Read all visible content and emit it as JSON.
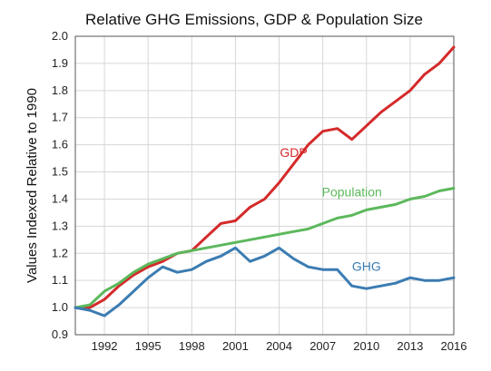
{
  "chart_data": {
    "type": "line",
    "title": "Relative GHG Emissions, GDP & Population Size",
    "xlabel": "",
    "ylabel": "Values Indexed Relative to 1990",
    "xlim": [
      1990,
      2016
    ],
    "ylim": [
      0.9,
      2.0
    ],
    "x_ticks": [
      1992,
      1995,
      1998,
      2001,
      2004,
      2007,
      2010,
      2013,
      2016
    ],
    "y_ticks": [
      0.9,
      1.0,
      1.1,
      1.2,
      1.3,
      1.4,
      1.5,
      1.6,
      1.7,
      1.8,
      1.9,
      2.0
    ],
    "grid": true,
    "legend": "none (series labeled directly on plot)",
    "x": [
      1990,
      1991,
      1992,
      1993,
      1994,
      1995,
      1996,
      1997,
      1998,
      1999,
      2000,
      2001,
      2002,
      2003,
      2004,
      2005,
      2006,
      2007,
      2008,
      2009,
      2010,
      2011,
      2012,
      2013,
      2014,
      2015,
      2016
    ],
    "series": [
      {
        "name": "GDP",
        "color": "#d42a2a",
        "values": [
          1.0,
          1.0,
          1.03,
          1.08,
          1.12,
          1.15,
          1.17,
          1.2,
          1.21,
          1.26,
          1.31,
          1.32,
          1.37,
          1.4,
          1.46,
          1.53,
          1.6,
          1.65,
          1.66,
          1.62,
          1.67,
          1.72,
          1.76,
          1.8,
          1.86,
          1.9,
          1.96
        ]
      },
      {
        "name": "Population",
        "color": "#5cb85c",
        "values": [
          1.0,
          1.01,
          1.06,
          1.09,
          1.13,
          1.16,
          1.18,
          1.2,
          1.21,
          1.22,
          1.23,
          1.24,
          1.25,
          1.26,
          1.27,
          1.28,
          1.29,
          1.31,
          1.33,
          1.34,
          1.36,
          1.37,
          1.38,
          1.4,
          1.41,
          1.43,
          1.44
        ]
      },
      {
        "name": "GHG",
        "color": "#3b7cb2",
        "values": [
          1.0,
          0.99,
          0.97,
          1.01,
          1.06,
          1.11,
          1.15,
          1.13,
          1.14,
          1.17,
          1.19,
          1.22,
          1.17,
          1.19,
          1.22,
          1.18,
          1.15,
          1.14,
          1.14,
          1.08,
          1.07,
          1.08,
          1.09,
          1.11,
          1.1,
          1.1,
          1.11
        ]
      }
    ]
  }
}
